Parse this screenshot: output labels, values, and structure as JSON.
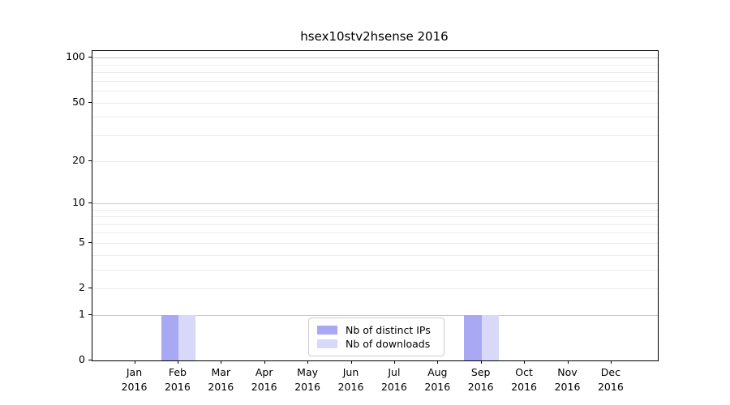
{
  "chart_data": {
    "type": "bar",
    "title": "hsex10stv2hsense 2016",
    "x_categories": [
      "Jan",
      "Feb",
      "Mar",
      "Apr",
      "May",
      "Jun",
      "Jul",
      "Aug",
      "Sep",
      "Oct",
      "Nov",
      "Dec"
    ],
    "x_sub_label": "2016",
    "series": [
      {
        "name": "Nb of distinct IPs",
        "color": "#a8a8f3",
        "values": [
          0,
          1,
          0,
          0,
          0,
          0,
          0,
          0,
          1,
          0,
          0,
          0
        ]
      },
      {
        "name": "Nb of downloads",
        "color": "#d8d8f9",
        "values": [
          0,
          1,
          0,
          0,
          0,
          0,
          0,
          0,
          1,
          0,
          0,
          0
        ]
      }
    ],
    "y_scale": "log1p",
    "ylim": [
      0,
      111
    ],
    "y_ticks": [
      0,
      1,
      2,
      5,
      10,
      20,
      50,
      100
    ],
    "y_tick_labels": [
      "0",
      "1",
      "2",
      "5",
      "10",
      "20",
      "50",
      "100"
    ],
    "grid": "horizontal major+minor",
    "legend_position": "lower center",
    "colors": {
      "major_grid": "#c9c9c9",
      "minor_grid": "#ececec",
      "spine": "#000000",
      "text": "#000000"
    }
  }
}
